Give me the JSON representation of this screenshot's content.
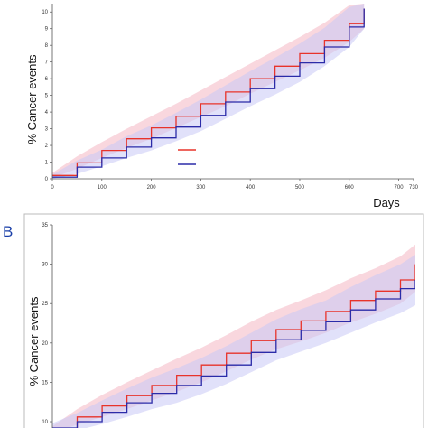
{
  "colors": {
    "red_series": "#e8332a",
    "blue_series": "#2b2ba8",
    "red_band": "#f4b6c2",
    "blue_band": "#c9c9f5",
    "panel_border": "#bbbbbb",
    "panel_letter": "#1a3fa8"
  },
  "chart_data": [
    {
      "type": "line",
      "panel_label": "",
      "xlabel": "Days",
      "ylabel": "% Cancer events",
      "xlim": [
        0,
        730
      ],
      "ylim": [
        0,
        10.5
      ],
      "x_ticks": [
        0,
        100,
        200,
        300,
        400,
        500,
        600,
        700,
        730
      ],
      "y_ticks": [
        0,
        1,
        2,
        3,
        4,
        5,
        6,
        7,
        8,
        9,
        10
      ],
      "legend": {
        "placement": "center-bottom",
        "entries": [
          "",
          ""
        ]
      },
      "series": [
        {
          "color_key": "red_series",
          "band_color_key": "red_band",
          "x": [
            0,
            50,
            100,
            150,
            200,
            250,
            300,
            350,
            400,
            450,
            500,
            550,
            600,
            630
          ],
          "values": [
            0.2,
            0.95,
            1.7,
            2.4,
            3.05,
            3.75,
            4.5,
            5.2,
            6.0,
            6.75,
            7.5,
            8.3,
            9.3,
            10.2
          ],
          "lower": [
            0.05,
            0.6,
            1.25,
            1.85,
            2.4,
            3.05,
            3.7,
            4.35,
            5.1,
            5.8,
            6.5,
            7.25,
            8.2,
            9.0
          ],
          "upper": [
            0.35,
            1.35,
            2.2,
            3.0,
            3.75,
            4.5,
            5.3,
            6.1,
            6.9,
            7.7,
            8.5,
            9.35,
            10.4,
            10.5
          ]
        },
        {
          "color_key": "blue_series",
          "band_color_key": "blue_band",
          "x": [
            0,
            50,
            100,
            150,
            200,
            250,
            300,
            350,
            400,
            450,
            500,
            550,
            600,
            630
          ],
          "values": [
            0.1,
            0.7,
            1.25,
            1.9,
            2.45,
            3.1,
            3.8,
            4.6,
            5.4,
            6.15,
            6.95,
            7.9,
            9.1,
            10.2
          ],
          "lower": [
            0.0,
            0.3,
            0.75,
            1.25,
            1.7,
            2.25,
            2.85,
            3.6,
            4.35,
            5.05,
            5.8,
            6.75,
            7.9,
            9.0
          ],
          "upper": [
            0.25,
            1.1,
            1.75,
            2.55,
            3.2,
            3.95,
            4.75,
            5.6,
            6.45,
            7.25,
            8.1,
            9.05,
            10.3,
            10.5
          ]
        }
      ]
    },
    {
      "type": "line",
      "panel_label": "B",
      "xlabel": "",
      "ylabel": "% Cancer events",
      "xlim": [
        0,
        730
      ],
      "ylim": [
        9.2,
        35
      ],
      "x_ticks": [],
      "y_ticks": [
        10,
        15,
        20,
        25,
        30,
        35
      ],
      "series": [
        {
          "color_key": "red_series",
          "band_color_key": "red_band",
          "x": [
            0,
            50,
            100,
            150,
            200,
            250,
            300,
            350,
            400,
            450,
            500,
            550,
            600,
            650,
            700,
            730
          ],
          "values": [
            9.0,
            10.6,
            12.0,
            13.3,
            14.6,
            15.9,
            17.2,
            18.7,
            20.3,
            21.7,
            22.8,
            24.0,
            25.4,
            26.6,
            28.0,
            30.0
          ],
          "lower": [
            8.6,
            9.6,
            10.6,
            11.6,
            12.7,
            13.8,
            15.0,
            16.4,
            17.9,
            19.2,
            20.2,
            21.3,
            22.6,
            23.7,
            25.0,
            26.5
          ],
          "upper": [
            9.4,
            11.6,
            13.4,
            15.0,
            16.5,
            18.0,
            19.4,
            21.0,
            22.7,
            24.2,
            25.4,
            26.7,
            28.2,
            29.5,
            31.0,
            32.5
          ]
        },
        {
          "color_key": "blue_series",
          "band_color_key": "blue_band",
          "x": [
            0,
            50,
            100,
            150,
            200,
            250,
            300,
            350,
            400,
            450,
            500,
            550,
            600,
            650,
            700,
            730
          ],
          "values": [
            9.2,
            10.0,
            11.2,
            12.4,
            13.6,
            14.6,
            15.8,
            17.2,
            18.8,
            20.4,
            21.6,
            22.7,
            24.2,
            25.6,
            26.9,
            28.0
          ],
          "lower": [
            8.6,
            8.9,
            9.7,
            10.6,
            11.6,
            12.4,
            13.5,
            14.8,
            16.3,
            17.8,
            18.9,
            20.0,
            21.3,
            22.6,
            23.8,
            24.8
          ],
          "upper": [
            9.8,
            11.1,
            12.7,
            14.2,
            15.6,
            16.8,
            18.1,
            19.6,
            21.3,
            23.0,
            24.3,
            25.4,
            27.1,
            28.6,
            30.0,
            31.2
          ]
        }
      ]
    }
  ]
}
